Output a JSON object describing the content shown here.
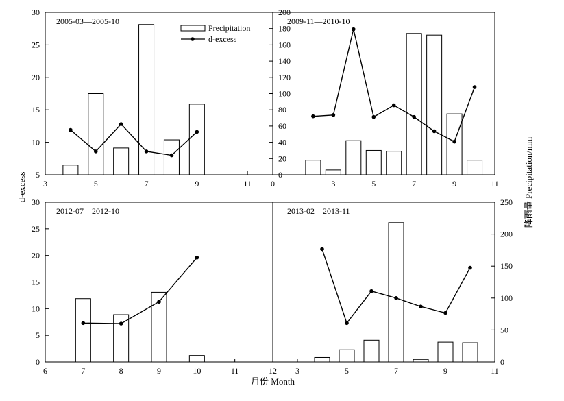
{
  "chart_data": [
    {
      "type": "bar+line",
      "panel_label": "2005-03—2005-10",
      "xlim": [
        3,
        12
      ],
      "x_ticks": [
        3,
        5,
        7,
        9,
        11
      ],
      "ylim_left": [
        5,
        30
      ],
      "y_ticks_left": [
        5,
        10,
        15,
        20,
        25,
        30
      ],
      "ylim_right": [
        0,
        200
      ],
      "y_ticks_right": [
        0,
        20,
        40,
        60,
        80,
        100,
        120,
        140,
        160,
        180,
        200
      ],
      "precipitation": {
        "x": [
          4,
          5,
          6,
          7,
          8,
          9
        ],
        "values": [
          12,
          100,
          33,
          185,
          43,
          87
        ]
      },
      "d_excess": {
        "x": [
          4,
          5,
          6,
          7,
          8,
          9
        ],
        "values": [
          11.9,
          8.6,
          12.8,
          8.6,
          8.0,
          11.6
        ]
      }
    },
    {
      "type": "bar+line",
      "panel_label": "2009-11—2010-10",
      "xlim": [
        0,
        11
      ],
      "x_ticks": [
        0,
        3,
        5,
        7,
        9,
        11
      ],
      "ylim_left": [
        5,
        30
      ],
      "ylim_right": [
        0,
        200
      ],
      "precipitation": {
        "x": [
          2,
          3,
          4,
          5,
          6,
          7,
          8,
          9,
          10
        ],
        "values": [
          18,
          6,
          42,
          30,
          29,
          174,
          172,
          75,
          18
        ]
      },
      "d_excess": {
        "x": [
          2,
          3,
          4,
          5,
          6,
          7,
          8,
          9,
          10
        ],
        "values": [
          14.0,
          14.2,
          27.4,
          13.9,
          15.7,
          13.9,
          11.7,
          10.1,
          18.5
        ]
      }
    },
    {
      "type": "bar+line",
      "panel_label": "2012-07—2012-10",
      "xlim": [
        6,
        12
      ],
      "x_ticks": [
        6,
        7,
        8,
        9,
        10,
        11,
        12
      ],
      "ylim_left": [
        0,
        30
      ],
      "y_ticks_left": [
        0,
        5,
        10,
        15,
        20,
        25,
        30
      ],
      "ylim_right": [
        0,
        250
      ],
      "precipitation": {
        "x": [
          7,
          8,
          9,
          10
        ],
        "values": [
          99,
          74,
          109,
          10
        ]
      },
      "d_excess": {
        "x": [
          7,
          8,
          9,
          10
        ],
        "values": [
          7.3,
          7.2,
          11.3,
          19.6
        ]
      }
    },
    {
      "type": "bar+line",
      "panel_label": "2013-02—2013-11",
      "xlim": [
        2,
        11
      ],
      "x_ticks": [
        3,
        5,
        7,
        9,
        11
      ],
      "ylim_left": [
        0,
        30
      ],
      "ylim_right": [
        0,
        250
      ],
      "y_ticks_right": [
        0,
        50,
        100,
        150,
        200,
        250
      ],
      "precipitation": {
        "x": [
          4,
          5,
          6,
          7,
          8,
          9,
          10
        ],
        "values": [
          7,
          19,
          34,
          218,
          4,
          31,
          30
        ]
      },
      "d_excess": {
        "x": [
          4,
          5,
          6,
          7,
          8,
          9,
          10
        ],
        "values": [
          21.2,
          7.3,
          13.3,
          12.0,
          10.4,
          9.2,
          17.7
        ]
      }
    }
  ],
  "legend": {
    "precipitation_label": "Precipitation",
    "d_excess_label": "d-excess"
  },
  "axes": {
    "ylabel_left": "d-excess",
    "ylabel_right": "降雨量  Precipitation/mm",
    "xlabel": "月份  Month"
  }
}
